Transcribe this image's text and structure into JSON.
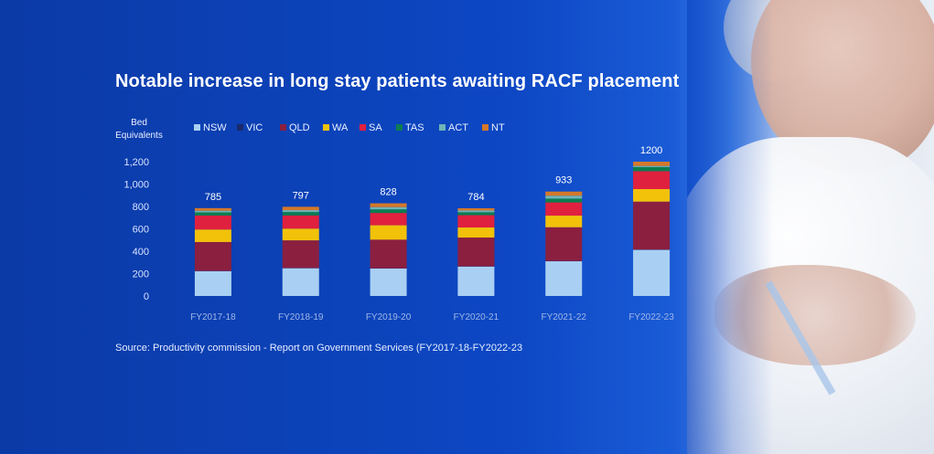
{
  "chart_data": {
    "type": "bar",
    "stacked": true,
    "title": "Notable increase in long stay patients awaiting RACF placement",
    "ylabel": "Bed Equivalents",
    "ylim": [
      0,
      1200
    ],
    "yticks": [
      0,
      200,
      400,
      600,
      800,
      1000,
      1200
    ],
    "ytick_labels": [
      "0",
      "200",
      "400",
      "600",
      "800",
      "1,000",
      "1,200"
    ],
    "categories": [
      "FY2017-18",
      "FY2018-19",
      "FY2019-20",
      "FY2020-21",
      "FY2021-22",
      "FY2022-23"
    ],
    "totals": [
      "785",
      "797",
      "828",
      "784",
      "933",
      "1200"
    ],
    "series": [
      {
        "name": "NSW",
        "color": "#a9d0f3",
        "values": [
          222,
          248,
          245,
          263,
          310,
          412
        ]
      },
      {
        "name": "VIC",
        "color": "#1b2a6b",
        "values": [
          2,
          2,
          2,
          2,
          2,
          3
        ]
      },
      {
        "name": "QLD",
        "color": "#8b1f3f",
        "values": [
          258,
          247,
          256,
          257,
          302,
          428
        ]
      },
      {
        "name": "WA",
        "color": "#f2c20a",
        "values": [
          112,
          105,
          129,
          90,
          104,
          112
        ]
      },
      {
        "name": "SA",
        "color": "#e0203f",
        "values": [
          125,
          118,
          110,
          110,
          118,
          160
        ]
      },
      {
        "name": "TAS",
        "color": "#0c7d4f",
        "values": [
          28,
          30,
          32,
          26,
          34,
          37
        ]
      },
      {
        "name": "ACT",
        "color": "#6fb3b8",
        "values": [
          15,
          17,
          20,
          16,
          26,
          10
        ]
      },
      {
        "name": "NT",
        "color": "#d4782a",
        "values": [
          23,
          30,
          34,
          20,
          37,
          38
        ]
      }
    ],
    "legend_position": "top"
  },
  "source": "Source: Productivity commission - Report on Government Services (FY2017-18-FY2022-23"
}
